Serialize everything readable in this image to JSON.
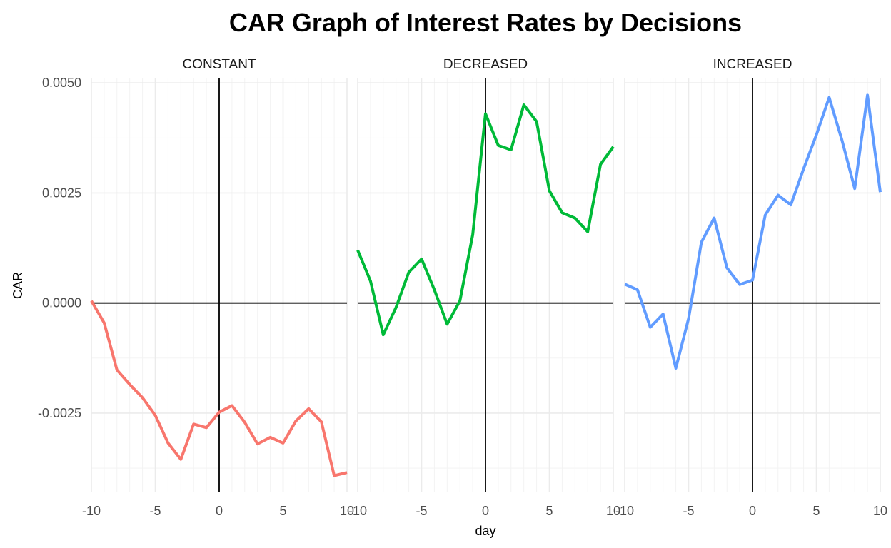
{
  "chart_data": {
    "type": "line",
    "title": "CAR Graph of Interest Rates by Decisions",
    "xlabel": "day",
    "ylabel": "CAR",
    "xlim": [
      -10,
      10
    ],
    "ylim": [
      -0.0043,
      0.0051
    ],
    "x_ticks": [
      -10,
      -5,
      0,
      5,
      10
    ],
    "x_tick_labels": [
      "-10",
      "-5",
      "0",
      "5",
      "10"
    ],
    "y_ticks": [
      -0.0025,
      0.0,
      0.0025,
      0.005
    ],
    "y_tick_labels": [
      "-0.0025",
      "0.0000",
      "0.0025",
      "0.0050"
    ],
    "grid": true,
    "reference_lines": {
      "x": 0,
      "y": 0
    },
    "legend": "none",
    "x": [
      -10,
      -9,
      -8,
      -7,
      -6,
      -5,
      -4,
      -3,
      -2,
      -1,
      0,
      1,
      2,
      3,
      4,
      5,
      6,
      7,
      8,
      9,
      10
    ],
    "panels": [
      {
        "label": "CONSTANT",
        "color": "#F8766D",
        "values": [
          5e-05,
          -0.00045,
          -0.00152,
          -0.00185,
          -0.00215,
          -0.00255,
          -0.00318,
          -0.00355,
          -0.00275,
          -0.00283,
          -0.00248,
          -0.00233,
          -0.00271,
          -0.0032,
          -0.00305,
          -0.00318,
          -0.00268,
          -0.0024,
          -0.0027,
          -0.00392,
          -0.00385
        ]
      },
      {
        "label": "DECREASED",
        "color": "#00BA38",
        "values": [
          0.0012,
          0.0005,
          -0.00072,
          -0.0001,
          0.0007,
          0.001,
          0.0003,
          -0.00048,
          5e-05,
          0.00155,
          0.0043,
          0.00358,
          0.00348,
          0.0045,
          0.00412,
          0.00255,
          0.00205,
          0.00193,
          0.00162,
          0.00315,
          0.00355
        ]
      },
      {
        "label": "INCREASED",
        "color": "#619CFF",
        "values": [
          0.00043,
          0.0003,
          -0.00055,
          -0.00025,
          -0.00148,
          -0.00035,
          0.00138,
          0.00193,
          0.0008,
          0.00042,
          0.00052,
          0.002,
          0.00245,
          0.00223,
          0.00305,
          0.00382,
          0.00467,
          0.0037,
          0.0026,
          0.00472,
          0.00252
        ]
      }
    ]
  }
}
